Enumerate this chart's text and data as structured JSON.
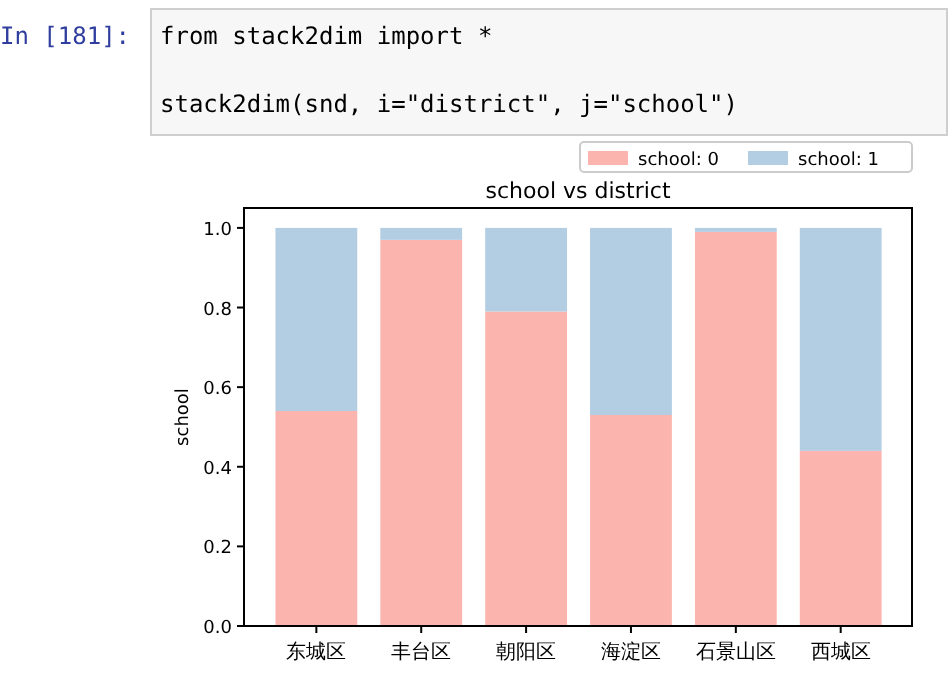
{
  "chart_data": {
    "type": "bar",
    "stacked": true,
    "title": "school vs district",
    "ylabel": "school",
    "categories": [
      "东城区",
      "丰台区",
      "朝阳区",
      "海淀区",
      "石景山区",
      "西城区"
    ],
    "series": [
      {
        "name": "school: 0",
        "color": "#fbb4ae",
        "values": [
          0.54,
          0.97,
          0.79,
          0.53,
          0.99,
          0.44
        ]
      },
      {
        "name": "school: 1",
        "color": "#b3cde3",
        "values": [
          0.46,
          0.03,
          0.21,
          0.47,
          0.01,
          0.56
        ]
      }
    ],
    "ylim": [
      0,
      1.05
    ],
    "yticks": [
      {
        "value": 0,
        "label": "0.0"
      },
      {
        "value": 0.2,
        "label": "0.2"
      },
      {
        "value": 0.4,
        "label": "0.4"
      },
      {
        "value": 0.6,
        "label": "0.6"
      },
      {
        "value": 0.8,
        "label": "0.8"
      },
      {
        "value": 1,
        "label": "1.0"
      }
    ],
    "legend": "top right",
    "grid": false,
    "annotations": [
      "In [181]:",
      "from stack2dim import *",
      "stack2dim(snd, i=\"district\", j=\"school\")"
    ]
  }
}
